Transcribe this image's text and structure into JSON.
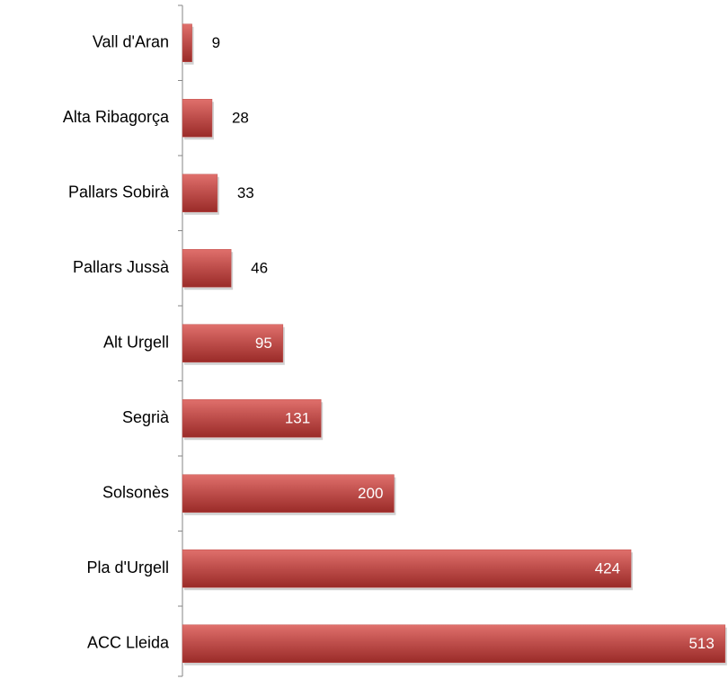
{
  "chart_data": {
    "type": "bar",
    "horizontal": true,
    "categories": [
      "Vall d'Aran",
      "Alta Ribagorça",
      "Pallars Sobirà",
      "Pallars Jussà",
      "Alt Urgell",
      "Segrià",
      "Solsonès",
      "Pla d'Urgell",
      "ACC Lleida"
    ],
    "values": [
      9,
      28,
      33,
      46,
      95,
      131,
      200,
      424,
      513
    ],
    "color": "#c0504d",
    "xlim": [
      0,
      514
    ]
  }
}
